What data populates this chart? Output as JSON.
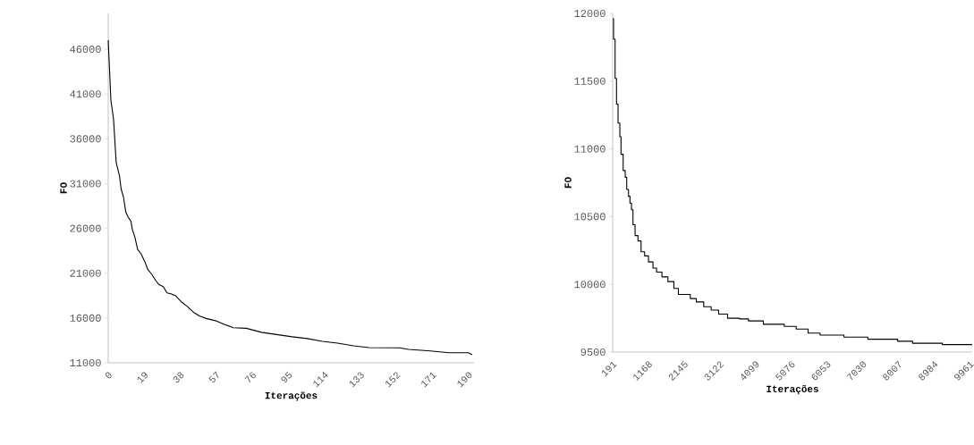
{
  "chart_data": [
    {
      "type": "line",
      "xlabel": "Iterações",
      "ylabel": "FO",
      "color": "#000000",
      "x": [
        0,
        1.4,
        2.8,
        4.2,
        6,
        6.8,
        8,
        9.3,
        10.4,
        12,
        12.7,
        14.1,
        15.5,
        17.4,
        19.3,
        20.9,
        22.9,
        25,
        26.6,
        29,
        31,
        33,
        35.5,
        38.7,
        41.8,
        45,
        48,
        51.7,
        56.5,
        61.5,
        66,
        72.8,
        80.8,
        88.8,
        97,
        105,
        113,
        121,
        129.4,
        137.5,
        153.6,
        158.5,
        170,
        179.7,
        190,
        192
      ],
      "values": [
        47000,
        40300,
        38200,
        33350,
        31800,
        30400,
        29550,
        27800,
        27300,
        26770,
        25900,
        25000,
        23650,
        23140,
        22280,
        21400,
        20900,
        20200,
        19760,
        19500,
        18800,
        18700,
        18480,
        17780,
        17270,
        16640,
        16230,
        15950,
        15700,
        15270,
        14920,
        14850,
        14400,
        14150,
        13900,
        13700,
        13400,
        13200,
        12900,
        12700,
        12670,
        12500,
        12320,
        12120,
        12120,
        11900
      ],
      "xlim": [
        0,
        193
      ],
      "xticks": [
        0,
        19,
        38,
        57,
        76,
        95,
        114,
        133,
        152,
        171,
        190
      ],
      "ylim": [
        11000,
        50000
      ],
      "yticks": [
        11000,
        16000,
        21000,
        26000,
        31000,
        36000,
        41000,
        46000
      ]
    },
    {
      "type": "step",
      "xlabel": "Iterações",
      "ylabel": "FO",
      "color": "#000000",
      "x": [
        191,
        215,
        257,
        296,
        338,
        387,
        419,
        478,
        534,
        575,
        624,
        664,
        706,
        747,
        804,
        884,
        968,
        1066,
        1171,
        1294,
        1392,
        1539,
        1703,
        1866,
        1989,
        2193,
        2316,
        2480,
        2683,
        2886,
        3090,
        3335,
        3662,
        3907,
        4314,
        4887,
        5213,
        5540,
        5867,
        6520,
        7173,
        7989,
        8398,
        9214,
        10030
      ],
      "values": [
        11960,
        11810,
        11520,
        11330,
        11190,
        11090,
        10960,
        10840,
        10790,
        10700,
        10650,
        10600,
        10550,
        10440,
        10360,
        10320,
        10240,
        10210,
        10165,
        10120,
        10090,
        10055,
        10020,
        9970,
        9925,
        9925,
        9895,
        9870,
        9835,
        9810,
        9780,
        9750,
        9745,
        9730,
        9705,
        9690,
        9670,
        9640,
        9625,
        9610,
        9595,
        9580,
        9565,
        9555,
        9555
      ],
      "xlim": [
        191,
        10030
      ],
      "xticks": [
        191,
        1168,
        2145,
        3122,
        4099,
        5076,
        6053,
        7030,
        8007,
        8984,
        9961
      ],
      "ylim": [
        9500,
        12000
      ],
      "yticks": [
        9500,
        10000,
        10500,
        11000,
        11500,
        12000
      ]
    }
  ]
}
